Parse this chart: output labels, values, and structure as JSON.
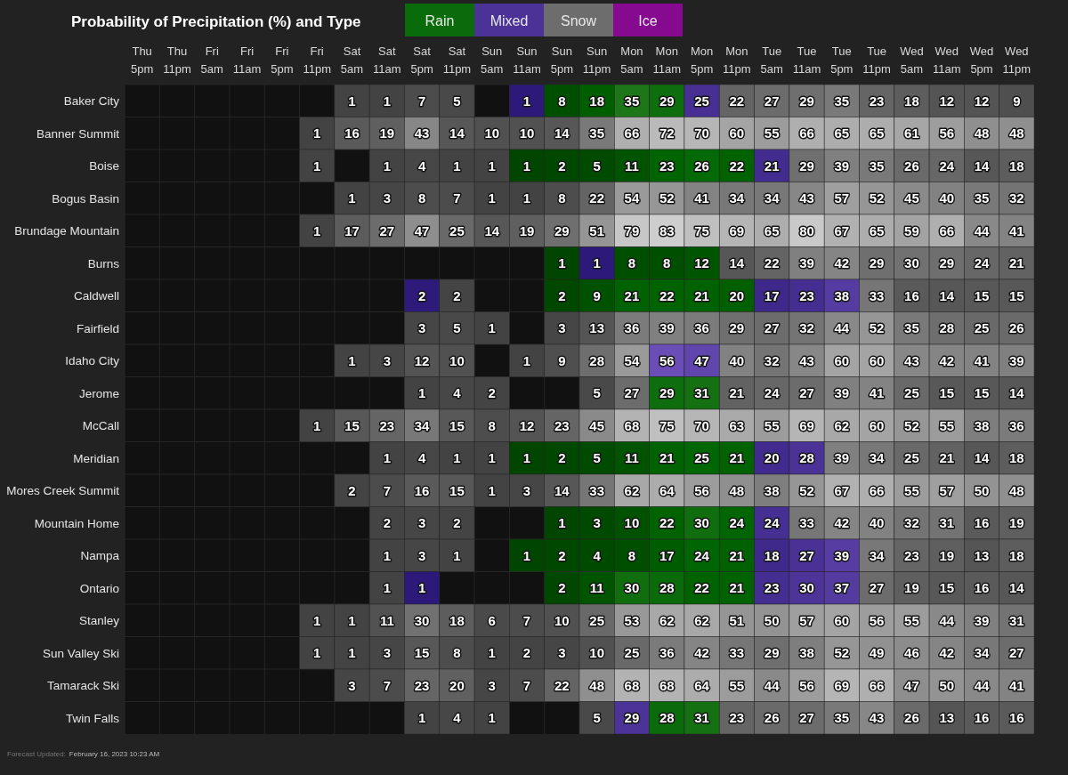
{
  "chart_data": {
    "type": "heatmap",
    "title": "Probability of Precipitation (%) and Type",
    "categories": [
      "Thu 5pm",
      "Thu 11pm",
      "Fri 5am",
      "Fri 11am",
      "Fri 5pm",
      "Fri 11pm",
      "Sat 5am",
      "Sat 11am",
      "Sat 5pm",
      "Sat 11pm",
      "Sun 5am",
      "Sun 11am",
      "Sun 5pm",
      "Sun 11pm",
      "Mon 5am",
      "Mon 11am",
      "Mon 5pm",
      "Mon 11pm",
      "Tue 5am",
      "Tue 11am",
      "Tue 5pm",
      "Tue 11pm",
      "Wed 5am",
      "Wed 11am",
      "Wed 5pm",
      "Wed 11pm"
    ],
    "y_categories": [
      "Baker City",
      "Banner Summit",
      "Boise",
      "Bogus Basin",
      "Brundage Mountain",
      "Burns",
      "Caldwell",
      "Fairfield",
      "Idaho City",
      "Jerome",
      "McCall",
      "Meridian",
      "Mores Creek Summit",
      "Mountain Home",
      "Nampa",
      "Ontario",
      "Stanley",
      "Sun Valley Ski",
      "Tamarack Ski",
      "Twin Falls"
    ],
    "cells": [
      [
        null,
        null,
        null,
        null,
        null,
        null,
        1,
        1,
        7,
        5,
        null,
        1,
        8,
        18,
        35,
        29,
        25,
        22,
        27,
        29,
        35,
        23,
        18,
        12,
        12,
        9
      ],
      [
        null,
        null,
        null,
        null,
        null,
        1,
        16,
        19,
        43,
        14,
        10,
        10,
        14,
        35,
        66,
        72,
        70,
        60,
        55,
        66,
        65,
        65,
        61,
        56,
        48,
        48
      ],
      [
        null,
        null,
        null,
        null,
        null,
        1,
        null,
        1,
        4,
        1,
        1,
        1,
        2,
        5,
        11,
        23,
        26,
        22,
        21,
        29,
        39,
        35,
        26,
        24,
        14,
        18
      ],
      [
        null,
        null,
        null,
        null,
        null,
        null,
        1,
        3,
        8,
        7,
        1,
        1,
        8,
        22,
        54,
        52,
        41,
        34,
        34,
        43,
        57,
        52,
        45,
        40,
        35,
        32
      ],
      [
        null,
        null,
        null,
        null,
        null,
        1,
        17,
        27,
        47,
        25,
        14,
        19,
        29,
        51,
        79,
        83,
        75,
        69,
        65,
        80,
        67,
        65,
        59,
        66,
        44,
        41
      ],
      [
        null,
        null,
        null,
        null,
        null,
        null,
        null,
        null,
        null,
        null,
        null,
        null,
        1,
        1,
        8,
        8,
        12,
        14,
        22,
        39,
        42,
        29,
        30,
        29,
        24,
        21
      ],
      [
        null,
        null,
        null,
        null,
        null,
        null,
        null,
        null,
        2,
        2,
        null,
        null,
        2,
        9,
        21,
        22,
        21,
        20,
        17,
        23,
        38,
        33,
        16,
        14,
        15,
        15
      ],
      [
        null,
        null,
        null,
        null,
        null,
        null,
        null,
        null,
        3,
        5,
        1,
        null,
        3,
        13,
        36,
        39,
        36,
        29,
        27,
        32,
        44,
        52,
        35,
        28,
        25,
        26
      ],
      [
        null,
        null,
        null,
        null,
        null,
        null,
        1,
        3,
        12,
        10,
        null,
        1,
        9,
        28,
        54,
        56,
        47,
        40,
        32,
        43,
        60,
        60,
        43,
        42,
        41,
        39
      ],
      [
        null,
        null,
        null,
        null,
        null,
        null,
        null,
        null,
        1,
        4,
        2,
        null,
        null,
        5,
        27,
        29,
        31,
        21,
        24,
        27,
        39,
        41,
        25,
        15,
        15,
        14
      ],
      [
        null,
        null,
        null,
        null,
        null,
        1,
        15,
        23,
        34,
        15,
        8,
        12,
        23,
        45,
        68,
        75,
        70,
        63,
        55,
        69,
        62,
        60,
        52,
        55,
        38,
        36
      ],
      [
        null,
        null,
        null,
        null,
        null,
        null,
        null,
        1,
        4,
        1,
        1,
        1,
        2,
        5,
        11,
        21,
        25,
        21,
        20,
        28,
        39,
        34,
        25,
        21,
        14,
        18
      ],
      [
        null,
        null,
        null,
        null,
        null,
        null,
        2,
        7,
        16,
        15,
        1,
        3,
        14,
        33,
        62,
        64,
        56,
        48,
        38,
        52,
        67,
        66,
        55,
        57,
        50,
        48
      ],
      [
        null,
        null,
        null,
        null,
        null,
        null,
        null,
        2,
        3,
        2,
        null,
        null,
        1,
        3,
        10,
        22,
        30,
        24,
        24,
        33,
        42,
        40,
        32,
        31,
        16,
        19
      ],
      [
        null,
        null,
        null,
        null,
        null,
        null,
        null,
        1,
        3,
        1,
        null,
        1,
        2,
        4,
        8,
        17,
        24,
        21,
        18,
        27,
        39,
        34,
        23,
        19,
        13,
        18
      ],
      [
        null,
        null,
        null,
        null,
        null,
        null,
        null,
        1,
        1,
        null,
        null,
        null,
        2,
        11,
        30,
        28,
        22,
        21,
        23,
        30,
        37,
        27,
        19,
        15,
        16,
        14
      ],
      [
        null,
        null,
        null,
        null,
        null,
        1,
        1,
        11,
        30,
        18,
        6,
        7,
        10,
        25,
        53,
        62,
        62,
        51,
        50,
        57,
        60,
        56,
        55,
        44,
        39,
        31
      ],
      [
        null,
        null,
        null,
        null,
        null,
        1,
        1,
        3,
        15,
        8,
        1,
        2,
        3,
        10,
        25,
        36,
        42,
        33,
        29,
        38,
        52,
        49,
        46,
        42,
        34,
        27
      ],
      [
        null,
        null,
        null,
        null,
        null,
        null,
        3,
        7,
        23,
        20,
        3,
        7,
        22,
        48,
        68,
        68,
        64,
        55,
        44,
        56,
        69,
        66,
        47,
        50,
        44,
        41
      ],
      [
        null,
        null,
        null,
        null,
        null,
        null,
        null,
        null,
        1,
        4,
        1,
        null,
        null,
        5,
        29,
        28,
        31,
        23,
        26,
        27,
        35,
        43,
        26,
        13,
        16,
        16
      ]
    ],
    "colors": [
      [
        null,
        null,
        null,
        null,
        null,
        null,
        "#6d6d6d",
        "#6d6d6d",
        "#6d6d6d",
        "#6d6d6d",
        null,
        "#4a3296",
        "#0a6b0a",
        "#0a6b0a",
        "#0a6b0a",
        "#0a6b0a",
        "#4a3296",
        "#6d6d6d",
        "#6d6d6d",
        "#6d6d6d",
        "#6d6d6d",
        "#6d6d6d",
        "#6d6d6d",
        "#6d6d6d",
        "#6d6d6d",
        "#6d6d6d"
      ],
      [
        null,
        null,
        null,
        null,
        null,
        "#6d6d6d",
        "#6d6d6d",
        "#6d6d6d",
        "#6d6d6d",
        "#6d6d6d",
        "#6d6d6d",
        "#6d6d6d",
        "#6d6d6d",
        "#6d6d6d",
        "#6d6d6d",
        "#6d6d6d",
        "#6d6d6d",
        "#6d6d6d",
        "#6d6d6d",
        "#6d6d6d",
        "#6d6d6d",
        "#6d6d6d",
        "#6d6d6d",
        "#6d6d6d",
        "#6d6d6d",
        "#6d6d6d"
      ],
      [
        null,
        null,
        null,
        null,
        null,
        "#6d6d6d",
        null,
        "#6d6d6d",
        "#6d6d6d",
        "#6d6d6d",
        "#6d6d6d",
        "#0a6b0a",
        "#0a6b0a",
        "#0a6b0a",
        "#0a6b0a",
        "#0a6b0a",
        "#0a6b0a",
        "#0a6b0a",
        "#4a3296",
        "#6d6d6d",
        "#6d6d6d",
        "#6d6d6d",
        "#6d6d6d",
        "#6d6d6d",
        "#6d6d6d",
        "#6d6d6d"
      ],
      [
        null,
        null,
        null,
        null,
        null,
        null,
        "#6d6d6d",
        "#6d6d6d",
        "#6d6d6d",
        "#6d6d6d",
        "#6d6d6d",
        "#6d6d6d",
        "#6d6d6d",
        "#6d6d6d",
        "#6d6d6d",
        "#6d6d6d",
        "#6d6d6d",
        "#6d6d6d",
        "#6d6d6d",
        "#6d6d6d",
        "#6d6d6d",
        "#6d6d6d",
        "#6d6d6d",
        "#6d6d6d",
        "#6d6d6d",
        "#6d6d6d"
      ],
      [
        null,
        null,
        null,
        null,
        null,
        "#6d6d6d",
        "#6d6d6d",
        "#6d6d6d",
        "#6d6d6d",
        "#6d6d6d",
        "#6d6d6d",
        "#6d6d6d",
        "#6d6d6d",
        "#6d6d6d",
        "#6d6d6d",
        "#6d6d6d",
        "#6d6d6d",
        "#6d6d6d",
        "#6d6d6d",
        "#6d6d6d",
        "#6d6d6d",
        "#6d6d6d",
        "#6d6d6d",
        "#6d6d6d",
        "#6d6d6d",
        "#6d6d6d"
      ],
      [
        null,
        null,
        null,
        null,
        null,
        null,
        null,
        null,
        null,
        null,
        null,
        null,
        "#0a6b0a",
        "#4a3296",
        "#0a6b0a",
        "#0a6b0a",
        "#0a6b0a",
        "#6d6d6d",
        "#6d6d6d",
        "#6d6d6d",
        "#6d6d6d",
        "#6d6d6d",
        "#6d6d6d",
        "#6d6d6d",
        "#6d6d6d",
        "#6d6d6d"
      ],
      [
        null,
        null,
        null,
        null,
        null,
        null,
        null,
        null,
        "#4a3296",
        "#6d6d6d",
        null,
        null,
        "#0a6b0a",
        "#0a6b0a",
        "#0a6b0a",
        "#0a6b0a",
        "#0a6b0a",
        "#0a6b0a",
        "#4a3296",
        "#4a3296",
        "#4a3296",
        "#6d6d6d",
        "#6d6d6d",
        "#6d6d6d",
        "#6d6d6d",
        "#6d6d6d"
      ],
      [
        null,
        null,
        null,
        null,
        null,
        null,
        null,
        null,
        "#6d6d6d",
        "#6d6d6d",
        "#6d6d6d",
        null,
        "#6d6d6d",
        "#6d6d6d",
        "#6d6d6d",
        "#6d6d6d",
        "#6d6d6d",
        "#6d6d6d",
        "#6d6d6d",
        "#6d6d6d",
        "#6d6d6d",
        "#6d6d6d",
        "#6d6d6d",
        "#6d6d6d",
        "#6d6d6d",
        "#6d6d6d"
      ],
      [
        null,
        null,
        null,
        null,
        null,
        null,
        "#6d6d6d",
        "#6d6d6d",
        "#6d6d6d",
        "#6d6d6d",
        null,
        "#6d6d6d",
        "#6d6d6d",
        "#6d6d6d",
        "#6d6d6d",
        "#4a3296",
        "#4a3296",
        "#6d6d6d",
        "#6d6d6d",
        "#6d6d6d",
        "#6d6d6d",
        "#6d6d6d",
        "#6d6d6d",
        "#6d6d6d",
        "#6d6d6d",
        "#6d6d6d"
      ],
      [
        null,
        null,
        null,
        null,
        null,
        null,
        null,
        null,
        "#6d6d6d",
        "#6d6d6d",
        "#6d6d6d",
        null,
        null,
        "#6d6d6d",
        "#6d6d6d",
        "#0a6b0a",
        "#0a6b0a",
        "#6d6d6d",
        "#6d6d6d",
        "#6d6d6d",
        "#6d6d6d",
        "#6d6d6d",
        "#6d6d6d",
        "#6d6d6d",
        "#6d6d6d",
        "#6d6d6d"
      ],
      [
        null,
        null,
        null,
        null,
        null,
        "#6d6d6d",
        "#6d6d6d",
        "#6d6d6d",
        "#6d6d6d",
        "#6d6d6d",
        "#6d6d6d",
        "#6d6d6d",
        "#6d6d6d",
        "#6d6d6d",
        "#6d6d6d",
        "#6d6d6d",
        "#6d6d6d",
        "#6d6d6d",
        "#6d6d6d",
        "#6d6d6d",
        "#6d6d6d",
        "#6d6d6d",
        "#6d6d6d",
        "#6d6d6d",
        "#6d6d6d",
        "#6d6d6d"
      ],
      [
        null,
        null,
        null,
        null,
        null,
        null,
        null,
        "#6d6d6d",
        "#6d6d6d",
        "#6d6d6d",
        "#6d6d6d",
        "#0a6b0a",
        "#0a6b0a",
        "#0a6b0a",
        "#0a6b0a",
        "#0a6b0a",
        "#0a6b0a",
        "#0a6b0a",
        "#4a3296",
        "#4a3296",
        "#6d6d6d",
        "#6d6d6d",
        "#6d6d6d",
        "#6d6d6d",
        "#6d6d6d",
        "#6d6d6d"
      ],
      [
        null,
        null,
        null,
        null,
        null,
        null,
        "#6d6d6d",
        "#6d6d6d",
        "#6d6d6d",
        "#6d6d6d",
        "#6d6d6d",
        "#6d6d6d",
        "#6d6d6d",
        "#6d6d6d",
        "#6d6d6d",
        "#6d6d6d",
        "#6d6d6d",
        "#6d6d6d",
        "#6d6d6d",
        "#6d6d6d",
        "#6d6d6d",
        "#6d6d6d",
        "#6d6d6d",
        "#6d6d6d",
        "#6d6d6d",
        "#6d6d6d"
      ],
      [
        null,
        null,
        null,
        null,
        null,
        null,
        null,
        "#6d6d6d",
        "#6d6d6d",
        "#6d6d6d",
        null,
        null,
        "#0a6b0a",
        "#0a6b0a",
        "#0a6b0a",
        "#0a6b0a",
        "#0a6b0a",
        "#0a6b0a",
        "#4a3296",
        "#6d6d6d",
        "#6d6d6d",
        "#6d6d6d",
        "#6d6d6d",
        "#6d6d6d",
        "#6d6d6d",
        "#6d6d6d"
      ],
      [
        null,
        null,
        null,
        null,
        null,
        null,
        null,
        "#6d6d6d",
        "#6d6d6d",
        "#6d6d6d",
        null,
        "#0a6b0a",
        "#0a6b0a",
        "#0a6b0a",
        "#0a6b0a",
        "#0a6b0a",
        "#0a6b0a",
        "#0a6b0a",
        "#4a3296",
        "#4a3296",
        "#4a3296",
        "#6d6d6d",
        "#6d6d6d",
        "#6d6d6d",
        "#6d6d6d",
        "#6d6d6d"
      ],
      [
        null,
        null,
        null,
        null,
        null,
        null,
        null,
        "#6d6d6d",
        "#4a3296",
        null,
        null,
        null,
        "#0a6b0a",
        "#0a6b0a",
        "#0a6b0a",
        "#0a6b0a",
        "#0a6b0a",
        "#0a6b0a",
        "#4a3296",
        "#4a3296",
        "#4a3296",
        "#6d6d6d",
        "#6d6d6d",
        "#6d6d6d",
        "#6d6d6d",
        "#6d6d6d"
      ],
      [
        null,
        null,
        null,
        null,
        null,
        "#6d6d6d",
        "#6d6d6d",
        "#6d6d6d",
        "#6d6d6d",
        "#6d6d6d",
        "#6d6d6d",
        "#6d6d6d",
        "#6d6d6d",
        "#6d6d6d",
        "#6d6d6d",
        "#6d6d6d",
        "#6d6d6d",
        "#6d6d6d",
        "#6d6d6d",
        "#6d6d6d",
        "#6d6d6d",
        "#6d6d6d",
        "#6d6d6d",
        "#6d6d6d",
        "#6d6d6d",
        "#6d6d6d"
      ],
      [
        null,
        null,
        null,
        null,
        null,
        "#6d6d6d",
        "#6d6d6d",
        "#6d6d6d",
        "#6d6d6d",
        "#6d6d6d",
        "#6d6d6d",
        "#6d6d6d",
        "#6d6d6d",
        "#6d6d6d",
        "#6d6d6d",
        "#6d6d6d",
        "#6d6d6d",
        "#6d6d6d",
        "#6d6d6d",
        "#6d6d6d",
        "#6d6d6d",
        "#6d6d6d",
        "#6d6d6d",
        "#6d6d6d",
        "#6d6d6d",
        "#6d6d6d"
      ],
      [
        null,
        null,
        null,
        null,
        null,
        null,
        "#6d6d6d",
        "#6d6d6d",
        "#6d6d6d",
        "#6d6d6d",
        "#6d6d6d",
        "#6d6d6d",
        "#6d6d6d",
        "#6d6d6d",
        "#6d6d6d",
        "#6d6d6d",
        "#6d6d6d",
        "#6d6d6d",
        "#6d6d6d",
        "#6d6d6d",
        "#6d6d6d",
        "#6d6d6d",
        "#6d6d6d",
        "#6d6d6d",
        "#6d6d6d",
        "#6d6d6d"
      ],
      [
        null,
        null,
        null,
        null,
        null,
        null,
        null,
        null,
        "#6d6d6d",
        "#6d6d6d",
        "#6d6d6d",
        null,
        null,
        "#6d6d6d",
        "#4a3296",
        "#0a6b0a",
        "#0a6b0a",
        "#6d6d6d",
        "#6d6d6d",
        "#6d6d6d",
        "#6d6d6d",
        "#6d6d6d",
        "#6d6d6d",
        "#6d6d6d",
        "#6d6d6d",
        "#6d6d6d"
      ]
    ],
    "data_labels": true,
    "legend": "top",
    "series": [
      {
        "name": "Rain",
        "color": "#0a6b0a",
        "values": [
          null,
          null,
          null,
          null,
          null,
          null,
          null,
          null,
          null,
          null,
          null,
          null,
          null,
          null,
          null,
          null,
          null,
          null,
          null,
          null,
          null,
          null,
          null,
          null,
          null,
          null
        ]
      },
      {
        "name": "Mixed",
        "color": "#4a3296",
        "values": [
          null,
          null,
          null,
          null,
          null,
          null,
          null,
          null,
          null,
          null,
          null,
          null,
          null,
          null,
          null,
          null,
          null,
          null,
          null,
          null,
          null,
          null,
          null,
          null,
          null,
          null
        ]
      },
      {
        "name": "Snow",
        "color": "#6d6d6d",
        "values": [
          null,
          null,
          null,
          null,
          null,
          null,
          null,
          null,
          null,
          null,
          null,
          null,
          null,
          null,
          null,
          null,
          null,
          null,
          null,
          null,
          null,
          null,
          null,
          null,
          null,
          null
        ]
      },
      {
        "name": "Ice",
        "color": "#860a90",
        "values": [
          null,
          null,
          null,
          null,
          null,
          null,
          null,
          null,
          null,
          null,
          null,
          null,
          null,
          null,
          null,
          null,
          null,
          null,
          null,
          null,
          null,
          null,
          null,
          null,
          null,
          null
        ]
      }
    ],
    "annotations": [
      "Forecast Updated:",
      "February 16, 2023 10:23 AM"
    ]
  }
}
